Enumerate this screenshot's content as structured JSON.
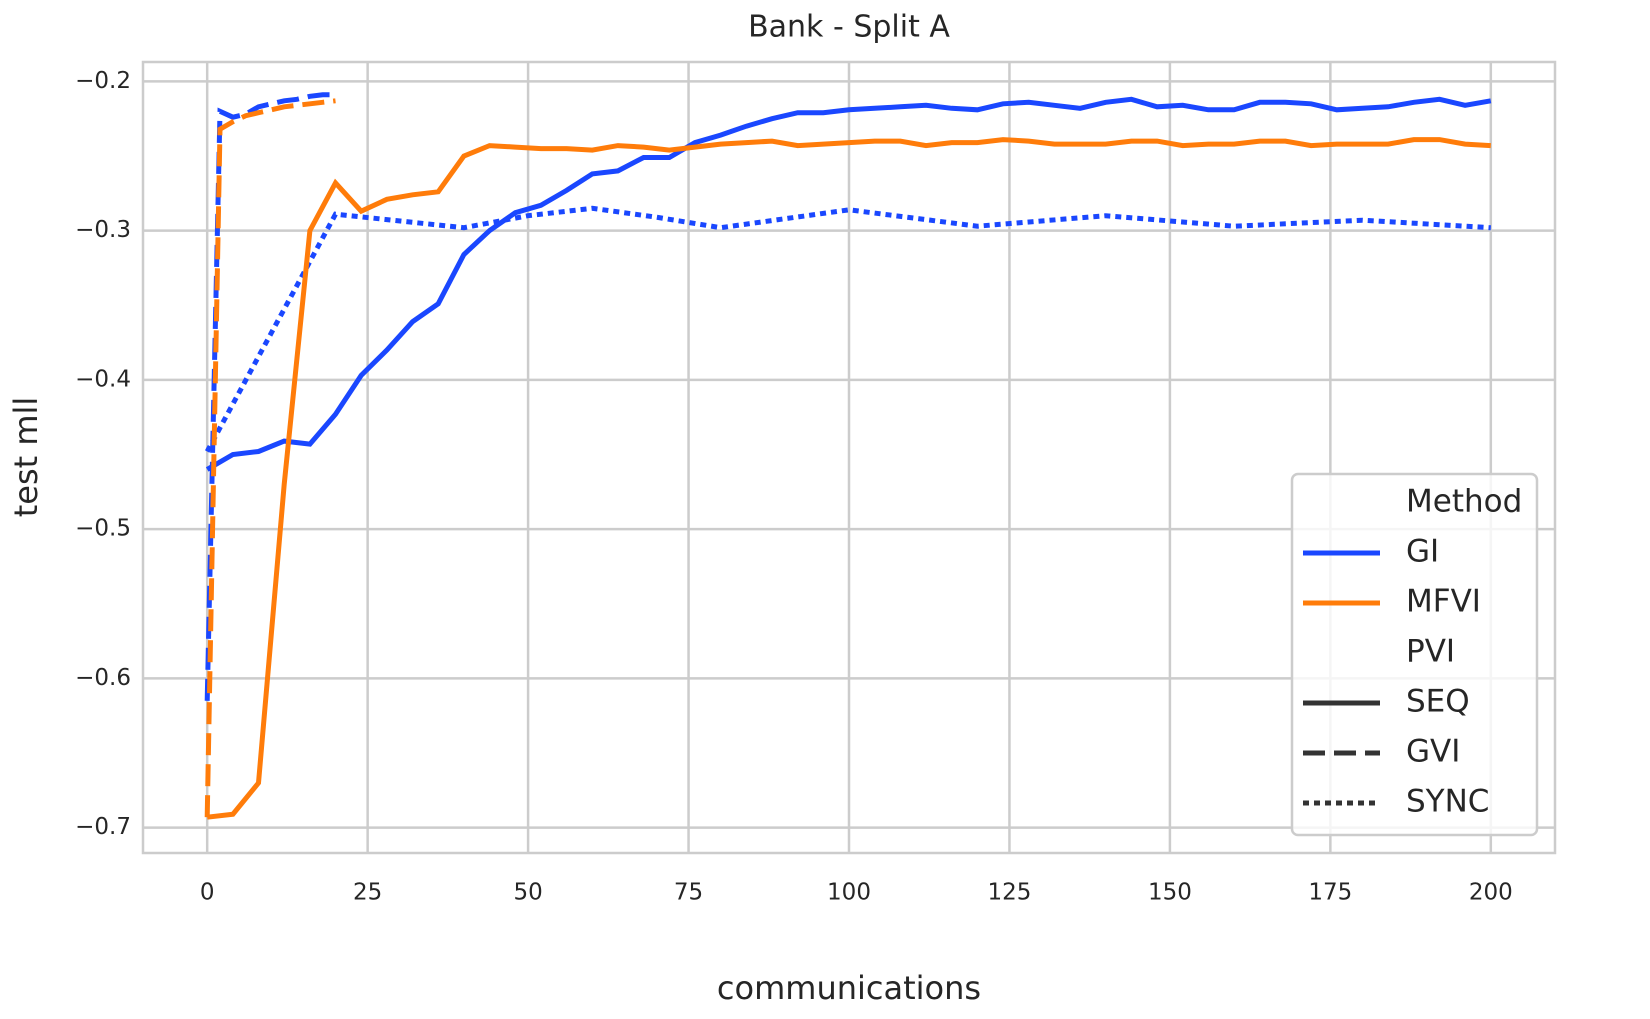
{
  "chart_data": {
    "type": "line",
    "title": "Bank - Split A",
    "x_label": "communications",
    "y_label": "test mll",
    "xlim": [
      -10,
      210
    ],
    "ylim": [
      -0.717,
      -0.187
    ],
    "xticks": [
      0,
      25,
      50,
      75,
      100,
      125,
      150,
      175,
      200
    ],
    "yticks": [
      {
        "value": -0.7,
        "label": "−0.7"
      },
      {
        "value": -0.6,
        "label": "−0.6"
      },
      {
        "value": -0.5,
        "label": "−0.5"
      },
      {
        "value": -0.4,
        "label": "−0.4"
      },
      {
        "value": -0.3,
        "label": "−0.3"
      },
      {
        "value": -0.2,
        "label": "−0.2"
      }
    ],
    "grid": true,
    "legend": {
      "position": "lower right",
      "hue_title": "Method",
      "hue": [
        {
          "label": "GI",
          "color": "#1a47ff"
        },
        {
          "label": "MFVI",
          "color": "#ff7c0a"
        }
      ],
      "style_title": "PVI",
      "styles": [
        {
          "label": "SEQ",
          "dash": "solid"
        },
        {
          "label": "GVI",
          "dash": "dashed"
        },
        {
          "label": "SYNC",
          "dash": "dotted"
        }
      ]
    },
    "series": [
      {
        "color": "#1a47ff",
        "dash": "dotted",
        "x": [
          0,
          20,
          40,
          50,
          60,
          70,
          80,
          100,
          120,
          140,
          160,
          180,
          200
        ],
        "values": [
          -0.448,
          -0.289,
          -0.298,
          -0.29,
          -0.285,
          -0.291,
          -0.298,
          -0.286,
          -0.297,
          -0.29,
          -0.297,
          -0.293,
          -0.298
        ]
      },
      {
        "color": "#1a47ff",
        "dash": "solid",
        "x": [
          0,
          4,
          8,
          12,
          16,
          20,
          24,
          28,
          32,
          36,
          40,
          44,
          48,
          52,
          56,
          60,
          64,
          68,
          72,
          76,
          80,
          84,
          88,
          92,
          96,
          100,
          104,
          108,
          112,
          116,
          120,
          124,
          128,
          132,
          136,
          140,
          144,
          148,
          152,
          156,
          160,
          164,
          168,
          172,
          176,
          180,
          184,
          188,
          192,
          196,
          200
        ],
        "values": [
          -0.46,
          -0.45,
          -0.448,
          -0.441,
          -0.443,
          -0.423,
          -0.397,
          -0.38,
          -0.361,
          -0.349,
          -0.316,
          -0.3,
          -0.288,
          -0.283,
          -0.273,
          -0.262,
          -0.26,
          -0.251,
          -0.251,
          -0.241,
          -0.236,
          -0.23,
          -0.225,
          -0.221,
          -0.221,
          -0.219,
          -0.218,
          -0.217,
          -0.216,
          -0.218,
          -0.219,
          -0.215,
          -0.214,
          -0.216,
          -0.218,
          -0.214,
          -0.212,
          -0.217,
          -0.216,
          -0.219,
          -0.219,
          -0.214,
          -0.214,
          -0.215,
          -0.219,
          -0.218,
          -0.217,
          -0.214,
          -0.212,
          -0.216,
          -0.213
        ]
      },
      {
        "color": "#ff7c0a",
        "dash": "solid",
        "x": [
          0,
          4,
          8,
          12,
          16,
          20,
          24,
          28,
          32,
          36,
          40,
          44,
          48,
          52,
          56,
          60,
          64,
          68,
          72,
          76,
          80,
          84,
          88,
          92,
          96,
          100,
          104,
          108,
          112,
          116,
          120,
          124,
          128,
          132,
          136,
          140,
          144,
          148,
          152,
          156,
          160,
          164,
          168,
          172,
          176,
          180,
          184,
          188,
          192,
          196,
          200
        ],
        "values": [
          -0.693,
          -0.691,
          -0.67,
          -0.47,
          -0.3,
          -0.268,
          -0.287,
          -0.279,
          -0.276,
          -0.274,
          -0.25,
          -0.243,
          -0.244,
          -0.245,
          -0.245,
          -0.246,
          -0.243,
          -0.244,
          -0.246,
          -0.244,
          -0.242,
          -0.241,
          -0.24,
          -0.243,
          -0.242,
          -0.241,
          -0.24,
          -0.24,
          -0.243,
          -0.241,
          -0.241,
          -0.239,
          -0.24,
          -0.242,
          -0.242,
          -0.242,
          -0.24,
          -0.24,
          -0.243,
          -0.242,
          -0.242,
          -0.24,
          -0.24,
          -0.243,
          -0.242,
          -0.242,
          -0.242,
          -0.239,
          -0.239,
          -0.242,
          -0.243
        ]
      },
      {
        "color": "#1a47ff",
        "dash": "dashed",
        "x": [
          0,
          2,
          4,
          6,
          8,
          10,
          12,
          14,
          16,
          18,
          20
        ],
        "values": [
          -0.615,
          -0.22,
          -0.224,
          -0.222,
          -0.217,
          -0.215,
          -0.213,
          -0.212,
          -0.21,
          -0.209,
          -0.209
        ]
      },
      {
        "color": "#ff7c0a",
        "dash": "dashed",
        "x": [
          0,
          2,
          4,
          6,
          8,
          10,
          12,
          14,
          16,
          18,
          20
        ],
        "values": [
          -0.693,
          -0.232,
          -0.227,
          -0.223,
          -0.221,
          -0.219,
          -0.217,
          -0.216,
          -0.215,
          -0.214,
          -0.213
        ]
      }
    ]
  }
}
